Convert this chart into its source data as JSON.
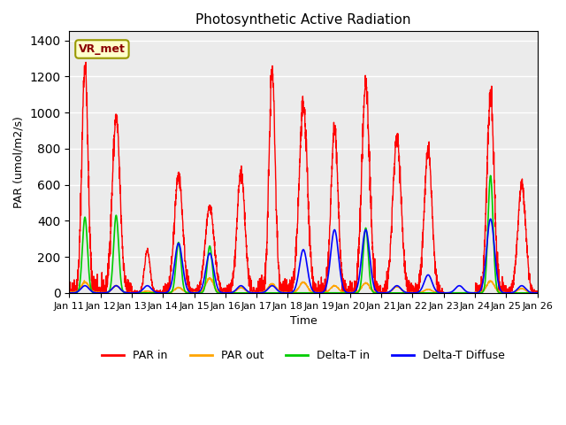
{
  "title": "Photosynthetic Active Radiation",
  "xlabel": "Time",
  "ylabel": "PAR (umol/m2/s)",
  "ylim": [
    0,
    1450
  ],
  "yticks": [
    0,
    200,
    400,
    600,
    800,
    1000,
    1200,
    1400
  ],
  "x_labels": [
    "Jan 11",
    "Jan 12",
    "Jan 13",
    "Jan 14",
    "Jan 15",
    "Jan 16",
    "Jan 17",
    "Jan 18",
    "Jan 19",
    "Jan 20",
    "Jan 21",
    "Jan 22",
    "Jan 23",
    "Jan 24",
    "Jan 25",
    "Jan 26"
  ],
  "annotation_text": "VR_met",
  "colors": {
    "PAR_in": "#ff0000",
    "PAR_out": "#ffa500",
    "Delta_T_in": "#00cc00",
    "Delta_T_Diffuse": "#0000ff"
  },
  "background_color": "#ebebeb",
  "grid_color": "#ffffff",
  "n_days": 15,
  "pts_per_day": 200,
  "par_in_peaks": [
    1265,
    970,
    235,
    650,
    470,
    665,
    1225,
    1035,
    910,
    1155,
    860,
    785,
    0,
    1100,
    600
  ],
  "par_in_widths": [
    0.22,
    0.28,
    0.2,
    0.3,
    0.32,
    0.28,
    0.22,
    0.3,
    0.25,
    0.28,
    0.3,
    0.28,
    0.25,
    0.25,
    0.28
  ],
  "par_out_peaks": [
    60,
    40,
    10,
    30,
    80,
    30,
    50,
    60,
    40,
    55,
    35,
    20,
    0,
    65,
    25
  ],
  "delta_t_in_peaks": [
    420,
    430,
    0,
    280,
    260,
    0,
    0,
    0,
    0,
    360,
    0,
    0,
    0,
    650,
    0
  ],
  "delta_t_diffuse_peaks": [
    40,
    40,
    40,
    275,
    220,
    40,
    40,
    240,
    350,
    350,
    40,
    100,
    40,
    410,
    40
  ]
}
